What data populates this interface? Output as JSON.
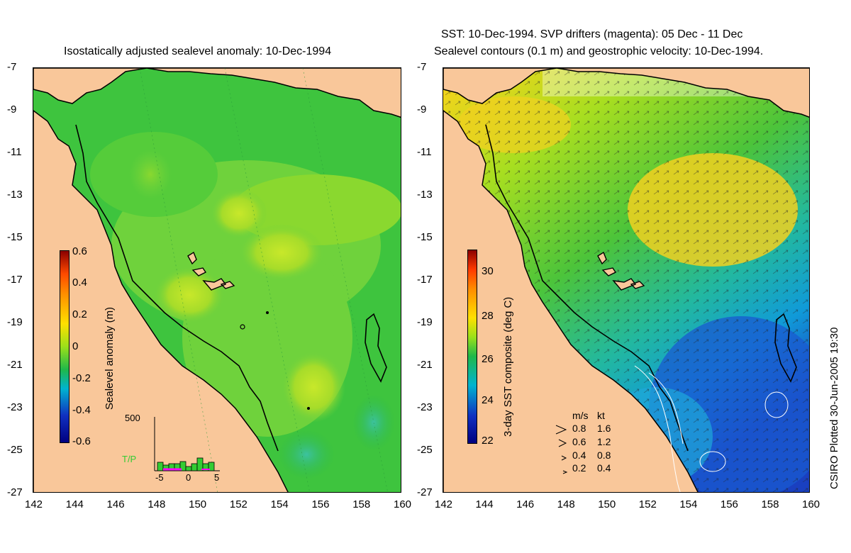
{
  "left_panel": {
    "title": "Isostatically adjusted sealevel anomaly: 10-Dec-1994",
    "colorbar": {
      "label": "Sealevel anomaly (m)",
      "ticks": [
        "0.6",
        "0.4",
        "0.2",
        "0",
        "-0.2",
        "-0.4",
        "-0.6"
      ],
      "colors": [
        "#8b0000",
        "#ff8c00",
        "#ffe000",
        "#9be01a",
        "#1fb84a",
        "#00b3d0",
        "#1030c0",
        "#000080"
      ]
    },
    "histogram": {
      "label": "T/P",
      "ymax_label": "500",
      "x_ticks": [
        "-5",
        "0",
        "5"
      ],
      "bar_color": "#33cc33",
      "marker_color": "#ff00ff"
    }
  },
  "right_panel": {
    "title_line1": "SST: 10-Dec-1994. SVP drifters (magenta): 05 Dec - 11 Dec",
    "title_line2": "Sealevel contours (0.1 m) and geostrophic velocity: 10-Dec-1994.",
    "colorbar": {
      "label": "3-day SST composite (deg C)",
      "ticks": [
        "30",
        "28",
        "26",
        "24",
        "22"
      ],
      "colors": [
        "#8b0000",
        "#ff8c00",
        "#ffe000",
        "#9be01a",
        "#1fb84a",
        "#00b3d0",
        "#1030c0",
        "#000080"
      ]
    },
    "velocity_legend": {
      "header_ms": "m/s",
      "header_kt": "kt",
      "rows": [
        {
          "ms": "0.8",
          "kt": "1.6"
        },
        {
          "ms": "0.6",
          "kt": "1.2"
        },
        {
          "ms": "0.4",
          "kt": "0.8"
        },
        {
          "ms": "0.2",
          "kt": "0.4"
        }
      ]
    }
  },
  "axes": {
    "lat_ticks": [
      "-7",
      "-9",
      "-11",
      "-13",
      "-15",
      "-17",
      "-19",
      "-21",
      "-23",
      "-25",
      "-27"
    ],
    "lon_ticks": [
      "142",
      "144",
      "146",
      "148",
      "150",
      "152",
      "154",
      "156",
      "158",
      "160"
    ]
  },
  "credit": "CSIRO Plotted 30-Jun-2005 19:30",
  "colors": {
    "land": "#f9c79a",
    "sea_anomaly": "#3ec43e",
    "sea_sst": "#6fd23c"
  }
}
